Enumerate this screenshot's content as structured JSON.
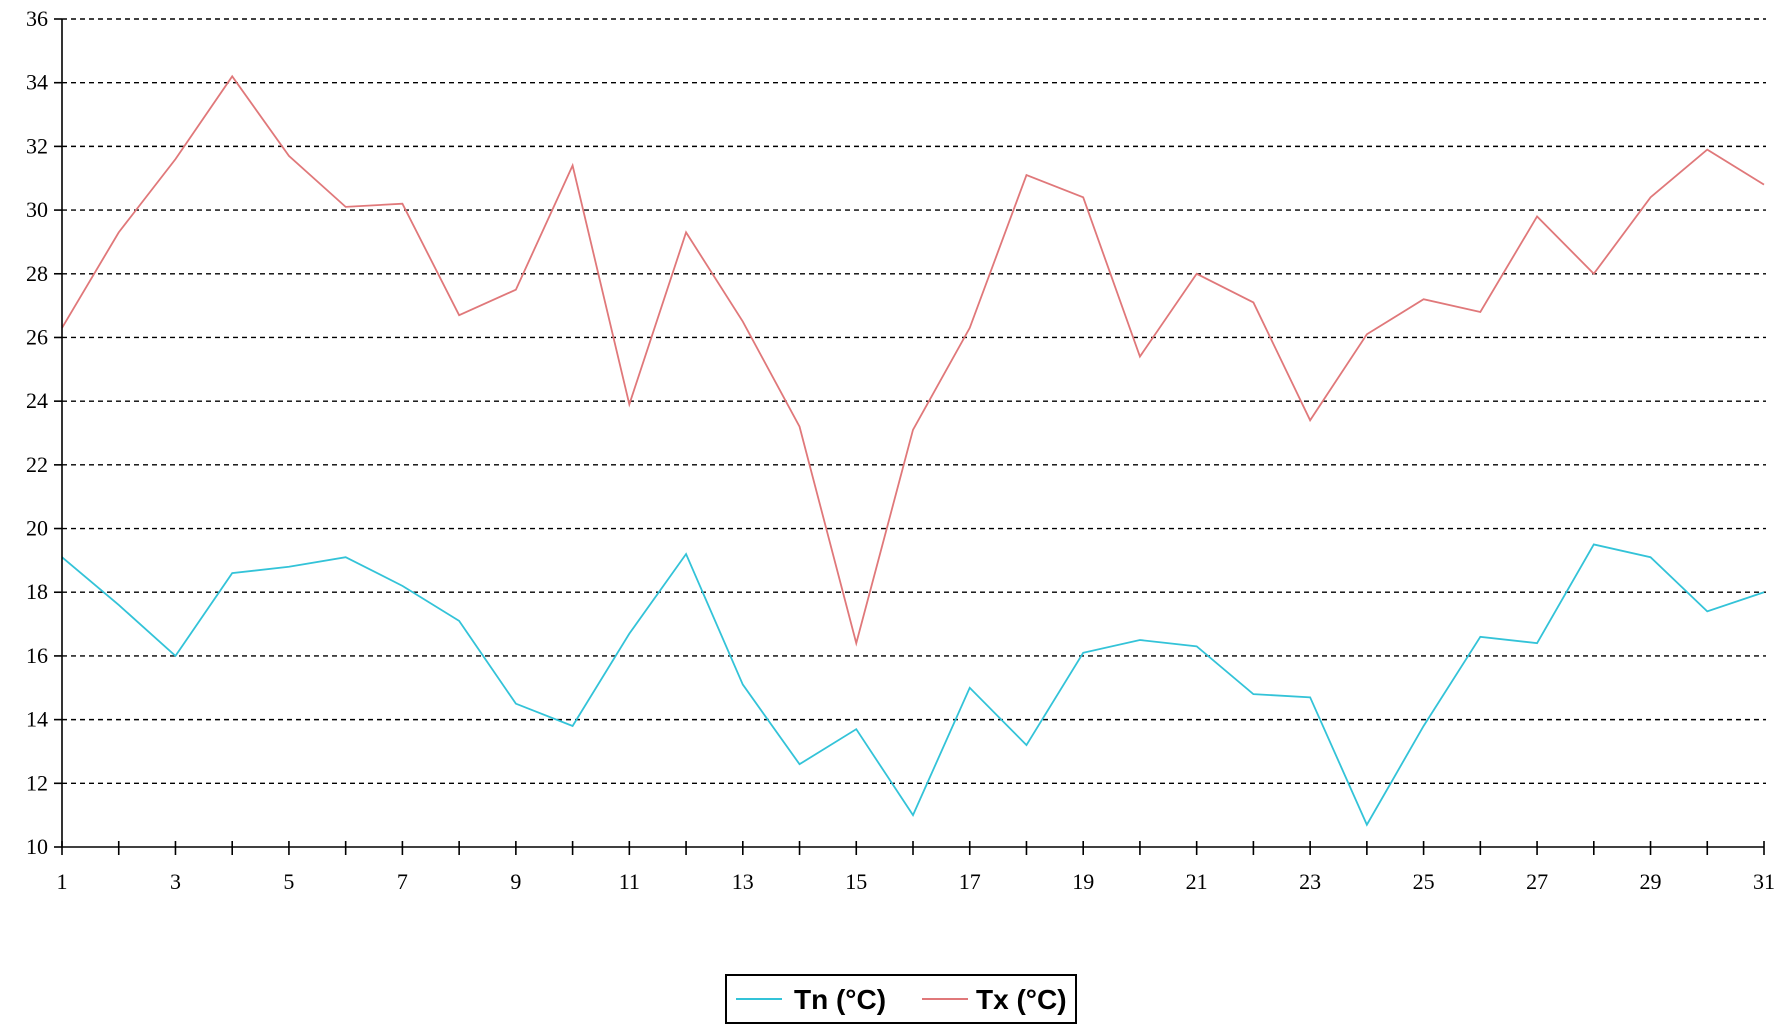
{
  "chart_data": {
    "type": "line",
    "title": "",
    "xlabel": "",
    "ylabel": "",
    "x": [
      1,
      2,
      3,
      4,
      5,
      6,
      7,
      8,
      9,
      10,
      11,
      12,
      13,
      14,
      15,
      16,
      17,
      18,
      19,
      20,
      21,
      22,
      23,
      24,
      25,
      26,
      27,
      28,
      29,
      30,
      31
    ],
    "x_tick_labels": [
      "1",
      "3",
      "5",
      "7",
      "9",
      "11",
      "13",
      "15",
      "17",
      "19",
      "21",
      "23",
      "25",
      "27",
      "29",
      "31"
    ],
    "y_tick_labels": [
      "10",
      "12",
      "14",
      "16",
      "18",
      "20",
      "22",
      "24",
      "26",
      "28",
      "30",
      "32",
      "34",
      "36"
    ],
    "ylim": [
      10,
      36
    ],
    "xlim": [
      1,
      31
    ],
    "grid": "horizontal dashed",
    "legend_position": "bottom",
    "series": [
      {
        "name": "Tn (°C)",
        "color": "#33c3d8",
        "values": [
          19.1,
          17.6,
          16.0,
          18.6,
          18.8,
          19.1,
          18.2,
          17.1,
          14.5,
          13.8,
          16.7,
          19.2,
          15.1,
          12.6,
          13.7,
          11.0,
          15.0,
          13.2,
          16.1,
          16.5,
          16.3,
          14.8,
          14.7,
          10.7,
          13.8,
          16.6,
          16.4,
          19.5,
          19.1,
          17.4,
          18.0
        ]
      },
      {
        "name": "Tx (°C)",
        "color": "#e0787a",
        "values": [
          26.3,
          29.3,
          31.6,
          34.2,
          31.7,
          30.1,
          30.2,
          26.7,
          27.5,
          31.4,
          23.9,
          29.3,
          26.5,
          23.2,
          16.4,
          23.1,
          26.3,
          31.1,
          30.4,
          25.4,
          28.0,
          27.1,
          23.4,
          26.1,
          27.2,
          26.8,
          29.8,
          28.0,
          30.4,
          31.9,
          30.8
        ]
      }
    ]
  }
}
